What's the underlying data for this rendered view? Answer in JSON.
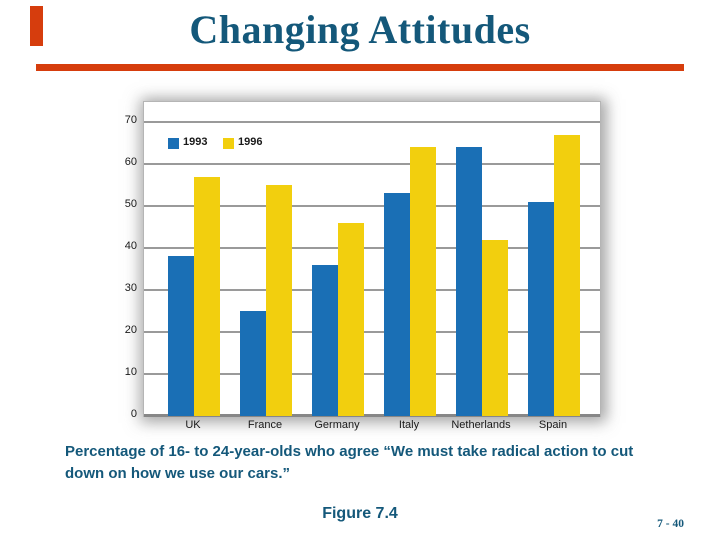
{
  "slide": {
    "title": "Changing Attitudes",
    "caption": "Percentage of 16- to 24-year-olds who agree “We must take radical action to cut down on how we use our cars.”",
    "figure_label": "Figure 7.4",
    "page_number": "7 - 40"
  },
  "colors": {
    "accent_red": "#d63d0d",
    "heading_teal": "#14587a",
    "gridline_gray": "#9a9a9a",
    "axis_text": "#1a1a1a"
  },
  "chart_data": {
    "type": "bar",
    "title": "",
    "xlabel": "",
    "ylabel": "",
    "categories": [
      "UK",
      "France",
      "Germany",
      "Italy",
      "Netherlands",
      "Spain"
    ],
    "series": [
      {
        "name": "1993",
        "color": "#1a6fb5",
        "values": [
          38,
          25,
          36,
          53,
          64,
          51
        ]
      },
      {
        "name": "1996",
        "color": "#f2cf0e",
        "values": [
          57,
          55,
          46,
          64,
          42,
          67
        ]
      }
    ],
    "ylim": [
      0,
      70
    ],
    "yticks": [
      0,
      10,
      20,
      30,
      40,
      50,
      60,
      70
    ],
    "grid": true,
    "legend_position": "top-left-inside"
  }
}
